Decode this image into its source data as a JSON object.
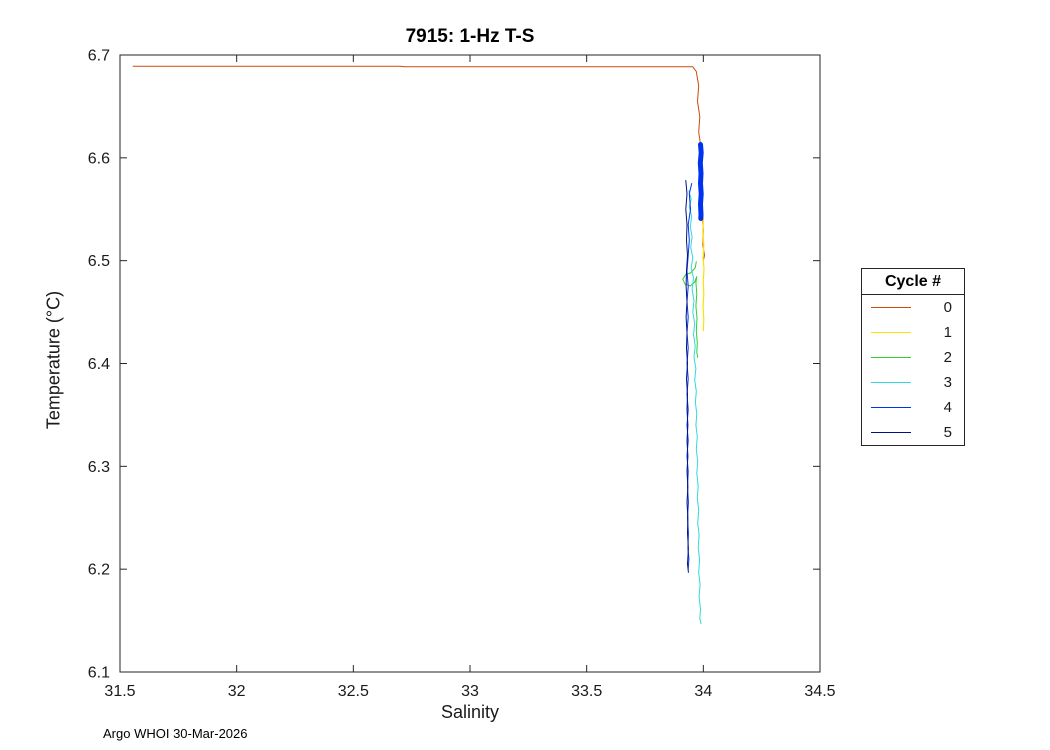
{
  "figure": {
    "footer": "Argo WHOI 30-Mar-2026"
  },
  "chart_data": {
    "type": "line",
    "title": "7915: 1-Hz T-S",
    "xlabel": "Salinity",
    "ylabel": "Temperature (°C)",
    "xlim": [
      31.5,
      34.5
    ],
    "ylim": [
      6.1,
      6.7
    ],
    "grid": false,
    "legend_title": "Cycle #",
    "legend_position": "right-outside",
    "xticks": [
      31.5,
      32,
      32.5,
      33,
      33.5,
      34,
      34.5
    ],
    "xtick_labels": [
      "31.5",
      "32",
      "32.5",
      "33",
      "33.5",
      "34",
      "34.5"
    ],
    "yticks": [
      6.1,
      6.2,
      6.3,
      6.4,
      6.5,
      6.6,
      6.7
    ],
    "ytick_labels": [
      "6.1",
      "6.2",
      "6.3",
      "6.4",
      "6.5",
      "6.6",
      "6.7"
    ],
    "series": [
      {
        "name": "0",
        "color": "#cc4a0a",
        "segments": [
          {
            "w": 1,
            "pts": [
              [
                31.556,
                6.689
              ],
              [
                32.7,
                6.689
              ],
              [
                32.72,
                6.6885
              ],
              [
                33.955,
                6.6885
              ],
              [
                33.97,
                6.684
              ],
              [
                33.98,
                6.67
              ],
              [
                33.975,
                6.655
              ],
              [
                33.985,
                6.64
              ],
              [
                33.98,
                6.625
              ],
              [
                33.99,
                6.61
              ],
              [
                33.985,
                6.59
              ],
              [
                33.99,
                6.57
              ],
              [
                33.988,
                6.555
              ],
              [
                33.995,
                6.545
              ],
              [
                34.0,
                6.53
              ],
              [
                33.998,
                6.515
              ],
              [
                34.005,
                6.505
              ],
              [
                34.0,
                6.5
              ]
            ]
          }
        ]
      },
      {
        "name": "1",
        "color": "#ffe100",
        "segments": [
          {
            "w": 1.2,
            "pts": [
              [
                33.996,
                6.548
              ],
              [
                34.0,
                6.54
              ],
              [
                33.998,
                6.528
              ],
              [
                34.002,
                6.515
              ],
              [
                33.999,
                6.503
              ],
              [
                34.003,
                6.492
              ],
              [
                34.0,
                6.48
              ],
              [
                34.002,
                6.468
              ],
              [
                33.999,
                6.455
              ],
              [
                34.002,
                6.443
              ],
              [
                34.0,
                6.432
              ]
            ]
          }
        ]
      },
      {
        "name": "2",
        "color": "#33cc33",
        "segments": [
          {
            "w": 1,
            "pts": [
              [
                33.97,
                6.499
              ],
              [
                33.965,
                6.493
              ],
              [
                33.945,
                6.488
              ],
              [
                33.925,
                6.4865
              ],
              [
                33.912,
                6.482
              ],
              [
                33.922,
                6.477
              ],
              [
                33.945,
                6.4755
              ],
              [
                33.962,
                6.479
              ],
              [
                33.972,
                6.4845
              ],
              [
                33.968,
                6.479
              ],
              [
                33.972,
                6.468
              ],
              [
                33.968,
                6.456
              ],
              [
                33.973,
                6.444
              ],
              [
                33.97,
                6.432
              ],
              [
                33.974,
                6.42
              ],
              [
                33.972,
                6.411
              ],
              [
                33.976,
                6.406
              ]
            ]
          }
        ]
      },
      {
        "name": "3",
        "color": "#2fd9dd",
        "segments": [
          {
            "w": 1,
            "pts": [
              [
                33.938,
                6.568
              ],
              [
                33.948,
                6.56
              ],
              [
                33.94,
                6.552
              ],
              [
                33.95,
                6.543
              ],
              [
                33.944,
                6.533
              ],
              [
                33.952,
                6.523
              ],
              [
                33.946,
                6.513
              ],
              [
                33.955,
                6.503
              ],
              [
                33.948,
                6.493
              ],
              [
                33.958,
                6.483
              ],
              [
                33.952,
                6.472
              ],
              [
                33.96,
                6.461
              ],
              [
                33.955,
                6.45
              ],
              [
                33.963,
                6.439
              ],
              [
                33.958,
                6.428
              ],
              [
                33.965,
                6.417
              ],
              [
                33.96,
                6.406
              ],
              [
                33.968,
                6.395
              ],
              [
                33.963,
                6.384
              ],
              [
                33.97,
                6.373
              ],
              [
                33.966,
                6.362
              ],
              [
                33.972,
                6.351
              ],
              [
                33.968,
                6.34
              ],
              [
                33.974,
                6.329
              ],
              [
                33.97,
                6.317
              ],
              [
                33.976,
                6.305
              ],
              [
                33.972,
                6.293
              ],
              [
                33.978,
                6.281
              ],
              [
                33.974,
                6.269
              ],
              [
                33.98,
                6.257
              ],
              [
                33.976,
                6.245
              ],
              [
                33.982,
                6.233
              ],
              [
                33.978,
                6.221
              ],
              [
                33.984,
                6.209
              ],
              [
                33.98,
                6.197
              ],
              [
                33.986,
                6.185
              ],
              [
                33.982,
                6.173
              ],
              [
                33.988,
                6.161
              ],
              [
                33.985,
                6.152
              ],
              [
                33.99,
                6.147
              ]
            ]
          }
        ]
      },
      {
        "name": "4",
        "color": "#0033ee",
        "segments": [
          {
            "w": 5,
            "pts": [
              [
                33.988,
                6.613
              ],
              [
                33.991,
                6.605
              ],
              [
                33.987,
                6.595
              ],
              [
                33.99,
                6.585
              ],
              [
                33.988,
                6.575
              ],
              [
                33.991,
                6.565
              ],
              [
                33.988,
                6.555
              ],
              [
                33.99,
                6.545
              ],
              [
                33.989,
                6.541
              ]
            ]
          },
          {
            "w": 1,
            "pts": [
              [
                33.95,
                6.575
              ],
              [
                33.94,
                6.565
              ],
              [
                33.945,
                6.55
              ],
              [
                33.935,
                6.535
              ],
              [
                33.94,
                6.52
              ],
              [
                33.935,
                6.505
              ],
              [
                33.93,
                6.49
              ],
              [
                33.935,
                6.475
              ],
              [
                33.93,
                6.46
              ],
              [
                33.935,
                6.445
              ],
              [
                33.93,
                6.43
              ],
              [
                33.935,
                6.415
              ],
              [
                33.93,
                6.4
              ],
              [
                33.935,
                6.385
              ],
              [
                33.93,
                6.37
              ],
              [
                33.935,
                6.355
              ],
              [
                33.93,
                6.34
              ],
              [
                33.935,
                6.325
              ],
              [
                33.93,
                6.31
              ],
              [
                33.935,
                6.295
              ],
              [
                33.932,
                6.28
              ],
              [
                33.936,
                6.265
              ],
              [
                33.932,
                6.25
              ],
              [
                33.936,
                6.235
              ],
              [
                33.934,
                6.22
              ],
              [
                33.938,
                6.21
              ],
              [
                33.935,
                6.2
              ]
            ]
          }
        ]
      },
      {
        "name": "5",
        "color": "#001080",
        "segments": [
          {
            "w": 1,
            "pts": [
              [
                33.925,
                6.578
              ],
              [
                33.93,
                6.565
              ],
              [
                33.925,
                6.55
              ],
              [
                33.93,
                6.535
              ],
              [
                33.928,
                6.52
              ],
              [
                33.932,
                6.505
              ],
              [
                33.928,
                6.49
              ],
              [
                33.926,
                6.475
              ],
              [
                33.93,
                6.46
              ],
              [
                33.926,
                6.445
              ],
              [
                33.93,
                6.43
              ],
              [
                33.928,
                6.415
              ],
              [
                33.932,
                6.4
              ],
              [
                33.928,
                6.385
              ],
              [
                33.932,
                6.37
              ],
              [
                33.93,
                6.355
              ],
              [
                33.934,
                6.34
              ],
              [
                33.93,
                6.325
              ],
              [
                33.934,
                6.31
              ],
              [
                33.93,
                6.295
              ],
              [
                33.934,
                6.28
              ],
              [
                33.93,
                6.265
              ],
              [
                33.934,
                6.25
              ],
              [
                33.932,
                6.235
              ],
              [
                33.936,
                6.22
              ],
              [
                33.932,
                6.205
              ],
              [
                33.936,
                6.197
              ]
            ]
          }
        ]
      }
    ]
  }
}
